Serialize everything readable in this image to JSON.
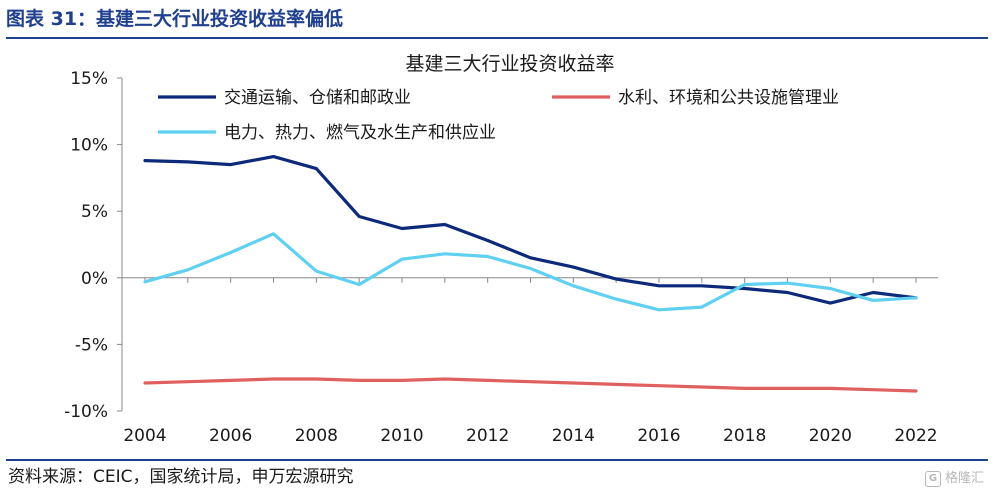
{
  "figure": {
    "title": "图表 31：基建三大行业投资收益率偏低",
    "source": "资料来源：CEIC，国家统计局，申万宏源研究",
    "watermark": "格隆汇",
    "watermark_icon": "G"
  },
  "colors": {
    "rule": "#1f3f8f",
    "transport": "#0d2a7a",
    "water": "#e0605f",
    "power": "#5fd0f2",
    "axis": "#888888"
  },
  "chart_data": {
    "type": "line",
    "title": "基建三大行业投资收益率",
    "x": [
      2004,
      2005,
      2006,
      2007,
      2008,
      2009,
      2010,
      2011,
      2012,
      2013,
      2014,
      2015,
      2016,
      2017,
      2018,
      2019,
      2020,
      2021,
      2022
    ],
    "x_tick_labels": [
      "2004",
      "2006",
      "2008",
      "2010",
      "2012",
      "2014",
      "2016",
      "2018",
      "2020",
      "2022"
    ],
    "y_tick_labels": [
      "15%",
      "10%",
      "5%",
      "0%",
      "-5%",
      "-10%"
    ],
    "ylim": [
      -10,
      15
    ],
    "y_ticks": [
      -10,
      -5,
      0,
      5,
      10,
      15
    ],
    "y_unit": "%",
    "legend_placement": "top",
    "series": [
      {
        "name": "交通运输、仓储和邮政业",
        "color": "#0d2a7a",
        "values": [
          8.8,
          8.7,
          8.5,
          9.1,
          8.2,
          4.6,
          3.7,
          4.0,
          2.8,
          1.5,
          0.8,
          -0.1,
          -0.6,
          -0.6,
          -0.8,
          -1.1,
          -1.9,
          -1.1,
          -1.5
        ]
      },
      {
        "name": "水利、环境和公共设施管理业",
        "color": "#e0605f",
        "values": [
          -7.9,
          -7.8,
          -7.7,
          -7.6,
          -7.6,
          -7.7,
          -7.7,
          -7.6,
          -7.7,
          -7.8,
          -7.9,
          -8.0,
          -8.1,
          -8.2,
          -8.3,
          -8.3,
          -8.3,
          -8.4,
          -8.5
        ]
      },
      {
        "name": "电力、热力、燃气及水生产和供应业",
        "color": "#5fd0f2",
        "values": [
          -0.3,
          0.6,
          1.9,
          3.3,
          0.5,
          -0.5,
          1.4,
          1.8,
          1.6,
          0.7,
          -0.6,
          -1.6,
          -2.4,
          -2.2,
          -0.5,
          -0.4,
          -0.8,
          -1.7,
          -1.5
        ]
      }
    ]
  }
}
